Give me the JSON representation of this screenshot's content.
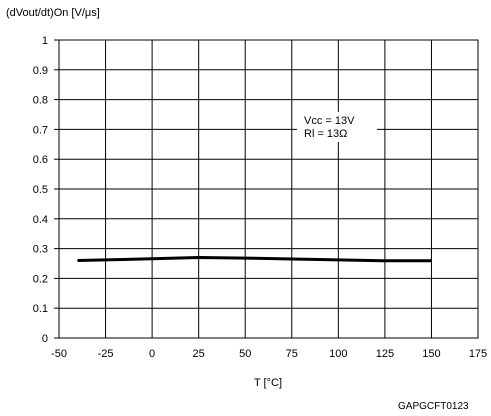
{
  "chart_data": {
    "type": "line",
    "title": "",
    "ylabel": "(dVout/dt)On [V/μs]",
    "xlabel": "T [°C]",
    "xlim": [
      -50,
      175
    ],
    "ylim": [
      0,
      1
    ],
    "xticks": [
      "-50",
      "-25",
      "0",
      "25",
      "50",
      "75",
      "100",
      "125",
      "150",
      "175"
    ],
    "yticks": [
      "0",
      "0.1",
      "0.2",
      "0.3",
      "0.4",
      "0.5",
      "0.6",
      "0.7",
      "0.8",
      "0.9",
      "1"
    ],
    "grid": true,
    "series": [
      {
        "x": [
          -40,
          -25,
          0,
          25,
          50,
          75,
          100,
          125,
          150
        ],
        "y": [
          0.26,
          0.262,
          0.266,
          0.27,
          0.268,
          0.265,
          0.262,
          0.259,
          0.259
        ],
        "color": "#000000"
      }
    ],
    "annotations": [
      "Vcc = 13V",
      "Rl = 13Ω"
    ],
    "figure_code": "GAPGCFT0123"
  }
}
